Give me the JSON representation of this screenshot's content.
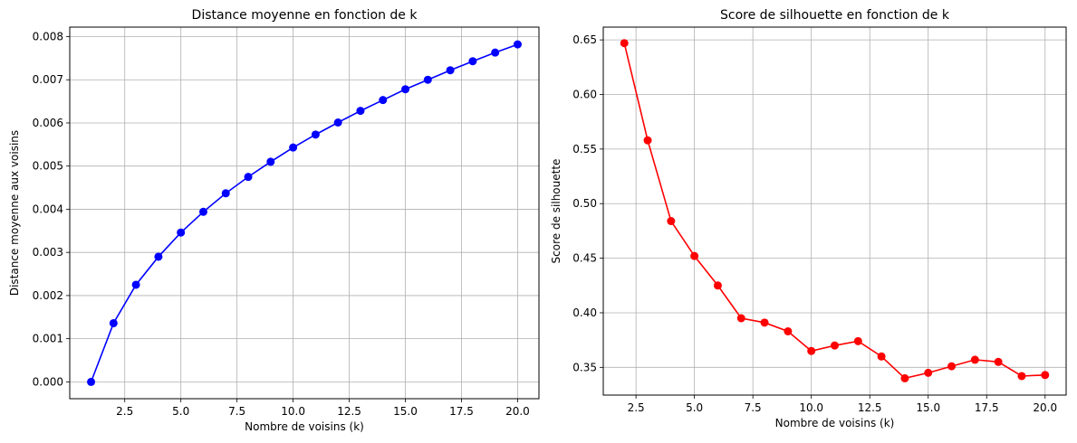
{
  "chart_data": [
    {
      "type": "line",
      "title": "Distance moyenne en fonction de k",
      "xlabel": "Nombre de voisins (k)",
      "ylabel": "Distance moyenne aux voisins",
      "xlim": [
        0.05,
        20.95
      ],
      "ylim": [
        -0.00039,
        0.00822
      ],
      "xticks": [
        2.5,
        5.0,
        7.5,
        10.0,
        12.5,
        15.0,
        17.5,
        20.0
      ],
      "xtick_labels": [
        "2.5",
        "5.0",
        "7.5",
        "10.0",
        "12.5",
        "15.0",
        "17.5",
        "20.0"
      ],
      "yticks": [
        0,
        0.001,
        0.002,
        0.003,
        0.004,
        0.005,
        0.006,
        0.007,
        0.008
      ],
      "ytick_labels": [
        "0.000",
        "0.001",
        "0.002",
        "0.003",
        "0.004",
        "0.005",
        "0.006",
        "0.007",
        "0.008"
      ],
      "grid": true,
      "color": "#0000ff",
      "x": [
        1,
        2,
        3,
        4,
        5,
        6,
        7,
        8,
        9,
        10,
        11,
        12,
        13,
        14,
        15,
        16,
        17,
        18,
        19,
        20
      ],
      "y": [
        0.0,
        0.00136,
        0.00225,
        0.0029,
        0.00346,
        0.00394,
        0.00437,
        0.00475,
        0.0051,
        0.00543,
        0.00573,
        0.00601,
        0.00628,
        0.00653,
        0.00678,
        0.007,
        0.00722,
        0.00743,
        0.00763,
        0.00782
      ]
    },
    {
      "type": "line",
      "title": "Score de silhouette en fonction de k",
      "xlabel": "Nombre de voisins (k)",
      "ylabel": "Score de silhouette",
      "xlim": [
        1.1,
        20.9
      ],
      "ylim": [
        0.3246,
        0.6617
      ],
      "xticks": [
        2.5,
        5.0,
        7.5,
        10.0,
        12.5,
        15.0,
        17.5,
        20.0
      ],
      "xtick_labels": [
        "2.5",
        "5.0",
        "7.5",
        "10.0",
        "12.5",
        "15.0",
        "17.5",
        "20.0"
      ],
      "yticks": [
        0.35,
        0.4,
        0.45,
        0.5,
        0.55,
        0.6,
        0.65
      ],
      "ytick_labels": [
        "0.35",
        "0.40",
        "0.45",
        "0.50",
        "0.55",
        "0.60",
        "0.65"
      ],
      "grid": true,
      "color": "#ff0000",
      "x": [
        2,
        3,
        4,
        5,
        6,
        7,
        8,
        9,
        10,
        11,
        12,
        13,
        14,
        15,
        16,
        17,
        18,
        19,
        20
      ],
      "y": [
        0.647,
        0.558,
        0.484,
        0.452,
        0.425,
        0.395,
        0.391,
        0.383,
        0.365,
        0.37,
        0.374,
        0.36,
        0.34,
        0.345,
        0.351,
        0.357,
        0.355,
        0.342,
        0.343
      ]
    }
  ]
}
